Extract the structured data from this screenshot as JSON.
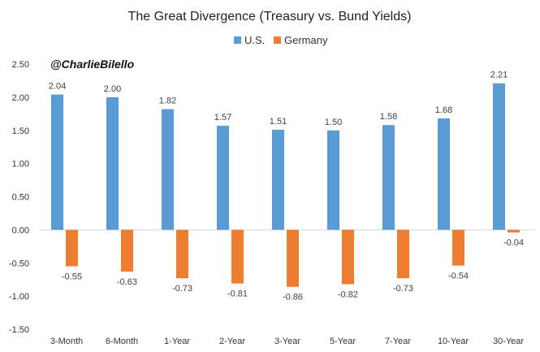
{
  "chart_data": {
    "type": "bar",
    "title": "The Great Divergence (Treasury vs. Bund Yields)",
    "watermark": "@CharlieBilello",
    "categories": [
      "3-Month",
      "6-Month",
      "1-Year",
      "2-Year",
      "3-Year",
      "5-Year",
      "7-Year",
      "10-Year",
      "30-Year"
    ],
    "series": [
      {
        "name": "U.S.",
        "color": "#5b9bd5",
        "values": [
          2.04,
          2.0,
          1.82,
          1.57,
          1.51,
          1.5,
          1.58,
          1.68,
          2.21
        ],
        "labels": [
          "2.04",
          "2.00",
          "1.82",
          "1.57",
          "1.51",
          "1.50",
          "1.58",
          "1.68",
          "2.21"
        ]
      },
      {
        "name": "Germany",
        "color": "#ed7d31",
        "values": [
          -0.55,
          -0.63,
          -0.73,
          -0.81,
          -0.86,
          -0.82,
          -0.73,
          -0.54,
          -0.04
        ],
        "labels": [
          "-0.55",
          "-0.63",
          "-0.73",
          "-0.81",
          "-0.86",
          "-0.82",
          "-0.73",
          "-0.54",
          "-0.04"
        ]
      }
    ],
    "ylim": [
      -1.5,
      2.5
    ],
    "yticks": [
      "2.50",
      "2.00",
      "1.50",
      "1.00",
      "0.50",
      "0.00",
      "-0.50",
      "-1.00",
      "-1.50"
    ],
    "xlabel": "",
    "ylabel": "",
    "grid": false,
    "legend": "top-center"
  }
}
